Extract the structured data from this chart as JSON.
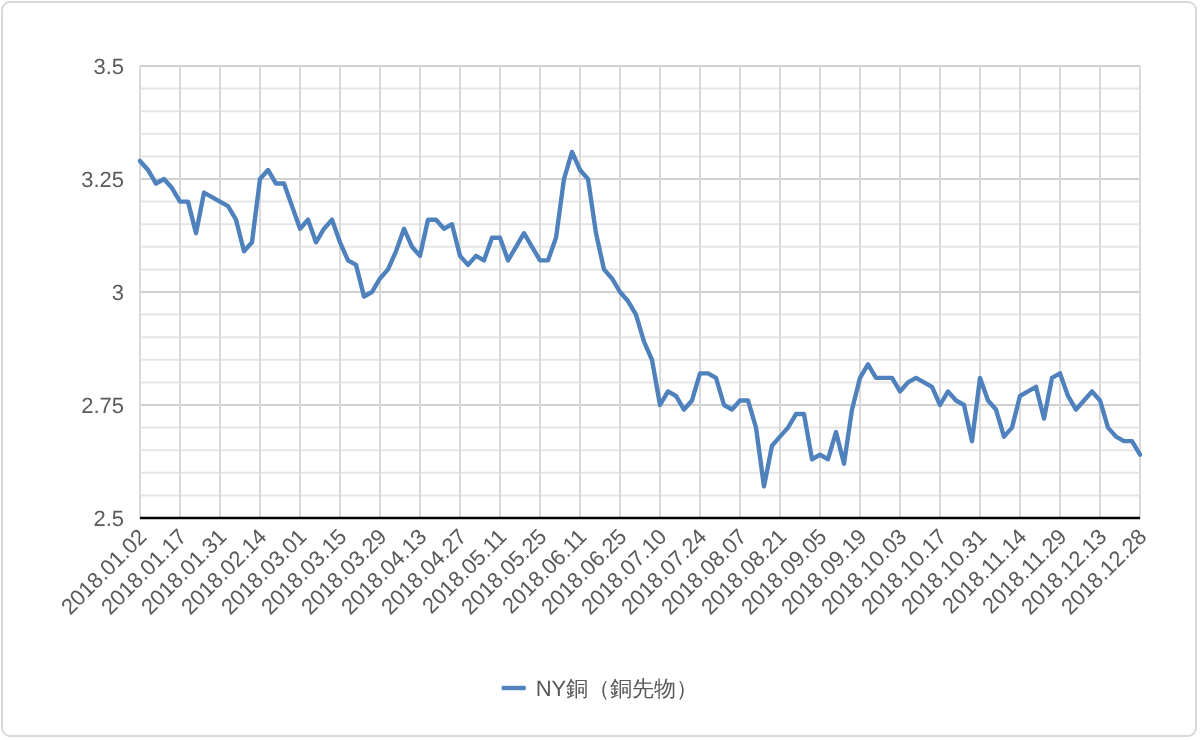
{
  "chart_data": {
    "type": "line",
    "categories": [
      "2018.01.02",
      null,
      null,
      null,
      null,
      "2018.01.17",
      null,
      null,
      null,
      null,
      "2018.01.31",
      null,
      null,
      null,
      null,
      "2018.02.14",
      null,
      null,
      null,
      null,
      "2018.03.01",
      null,
      null,
      null,
      null,
      "2018.03.15",
      null,
      null,
      null,
      null,
      "2018.03.29",
      null,
      null,
      null,
      null,
      "2018.04.13",
      null,
      null,
      null,
      null,
      "2018.04.27",
      null,
      null,
      null,
      null,
      "2018.05.11",
      null,
      null,
      null,
      null,
      "2018.05.25",
      null,
      null,
      null,
      null,
      "2018.06.11",
      null,
      null,
      null,
      null,
      "2018.06.25",
      null,
      null,
      null,
      null,
      "2018.07.10",
      null,
      null,
      null,
      null,
      "2018.07.24",
      null,
      null,
      null,
      null,
      "2018.08.07",
      null,
      null,
      null,
      null,
      "2018.08.21",
      null,
      null,
      null,
      null,
      "2018.09.05",
      null,
      null,
      null,
      null,
      "2018.09.19",
      null,
      null,
      null,
      null,
      "2018.10.03",
      null,
      null,
      null,
      null,
      "2018.10.17",
      null,
      null,
      null,
      null,
      "2018.10.31",
      null,
      null,
      null,
      null,
      "2018.11.14",
      null,
      null,
      null,
      null,
      "2018.11.29",
      null,
      null,
      null,
      null,
      "2018.12.13",
      null,
      null,
      null,
      null,
      "2018.12.28"
    ],
    "series": [
      {
        "name": "NY銅（銅先物）",
        "color": "#4f81bd",
        "values": [
          3.29,
          3.27,
          3.24,
          3.25,
          3.23,
          3.2,
          3.2,
          3.13,
          3.22,
          3.21,
          3.2,
          3.19,
          3.16,
          3.09,
          3.11,
          3.25,
          3.27,
          3.24,
          3.24,
          3.19,
          3.14,
          3.16,
          3.11,
          3.14,
          3.16,
          3.11,
          3.07,
          3.06,
          2.99,
          3.0,
          3.03,
          3.05,
          3.09,
          3.14,
          3.1,
          3.08,
          3.16,
          3.16,
          3.14,
          3.15,
          3.08,
          3.06,
          3.08,
          3.07,
          3.12,
          3.12,
          3.07,
          3.1,
          3.13,
          3.1,
          3.07,
          3.07,
          3.12,
          3.25,
          3.31,
          3.27,
          3.25,
          3.13,
          3.05,
          3.03,
          3.0,
          2.98,
          2.95,
          2.89,
          2.85,
          2.75,
          2.78,
          2.77,
          2.74,
          2.76,
          2.82,
          2.82,
          2.81,
          2.75,
          2.74,
          2.76,
          2.76,
          2.7,
          2.57,
          2.66,
          2.68,
          2.7,
          2.73,
          2.73,
          2.63,
          2.64,
          2.63,
          2.69,
          2.62,
          2.74,
          2.81,
          2.84,
          2.81,
          2.81,
          2.81,
          2.78,
          2.8,
          2.81,
          2.8,
          2.79,
          2.75,
          2.78,
          2.76,
          2.75,
          2.67,
          2.81,
          2.76,
          2.74,
          2.68,
          2.7,
          2.77,
          2.78,
          2.79,
          2.72,
          2.81,
          2.82,
          2.77,
          2.74,
          2.76,
          2.78,
          2.76,
          2.7,
          2.68,
          2.67,
          2.67,
          2.64
        ]
      }
    ],
    "ylim": [
      2.5,
      3.5
    ],
    "yticks": [
      2.5,
      {
        "value": 2.55,
        "label": null
      },
      {
        "value": 2.6,
        "label": null
      },
      {
        "value": 2.65,
        "label": null
      },
      {
        "value": 2.7,
        "label": null
      },
      2.75,
      {
        "value": 2.8,
        "label": null
      },
      {
        "value": 2.85,
        "label": null
      },
      {
        "value": 2.9,
        "label": null
      },
      {
        "value": 2.95,
        "label": null
      },
      3,
      {
        "value": 3.05,
        "label": null
      },
      {
        "value": 3.1,
        "label": null
      },
      {
        "value": 3.15,
        "label": null
      },
      {
        "value": 3.2,
        "label": null
      },
      3.25,
      {
        "value": 3.3,
        "label": null
      },
      {
        "value": 3.35,
        "label": null
      },
      {
        "value": 3.4,
        "label": null
      },
      {
        "value": 3.45,
        "label": null
      },
      3.5
    ],
    "grid": true,
    "legend": "bottom",
    "marker": "none",
    "line_style": "solid"
  }
}
